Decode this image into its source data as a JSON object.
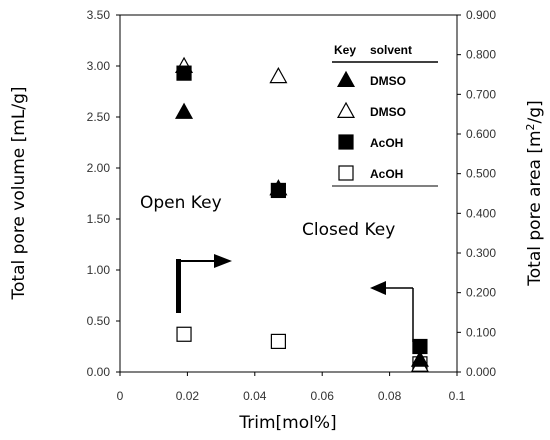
{
  "chart_data": {
    "type": "scatter",
    "xlabel": "Trim[mol%]",
    "ylabel_left": "Total pore volume [mL/g]",
    "ylabel_right_main": "Total pore area [m",
    "ylabel_right_sup": "2",
    "ylabel_right_end": "/g]",
    "xlim": [
      0,
      0.1
    ],
    "ylim_left": [
      0,
      3.5
    ],
    "ylim_right": [
      0,
      0.9
    ],
    "x_ticks": [
      "0",
      "0.02",
      "0.04",
      "0.06",
      "0.08",
      "0.1"
    ],
    "y_left_ticks": [
      "0.00",
      "0.50",
      "1.00",
      "1.50",
      "2.00",
      "2.50",
      "3.00",
      "3.50"
    ],
    "y_right_ticks": [
      "0.000",
      "0.100",
      "0.200",
      "0.300",
      "0.400",
      "0.500",
      "0.600",
      "0.700",
      "0.800",
      "0.900"
    ],
    "grid": false,
    "legend_position": "top-right",
    "legend": {
      "header_key": "Key",
      "header_solvent": "solvent",
      "entries": [
        {
          "marker": "triangle-filled",
          "label": "DMSO"
        },
        {
          "marker": "triangle-open",
          "label": "DMSO"
        },
        {
          "marker": "square-filled",
          "label": "AcOH"
        },
        {
          "marker": "square-open",
          "label": "AcOH"
        }
      ]
    },
    "series": [
      {
        "marker": "triangle-filled",
        "points": [
          [
            0.019,
            2.55
          ],
          [
            0.047,
            1.8
          ],
          [
            0.089,
            0.12
          ]
        ]
      },
      {
        "marker": "triangle-open",
        "points": [
          [
            0.019,
            3.0
          ],
          [
            0.047,
            2.9
          ],
          [
            0.089,
            0.07
          ]
        ]
      },
      {
        "marker": "square-filled",
        "points": [
          [
            0.019,
            2.93
          ],
          [
            0.047,
            1.78
          ],
          [
            0.089,
            0.25
          ]
        ]
      },
      {
        "marker": "square-open",
        "points": [
          [
            0.019,
            0.37
          ],
          [
            0.047,
            0.3
          ],
          [
            0.089,
            0.08
          ]
        ]
      }
    ],
    "annotations": [
      {
        "text": "Open Key"
      },
      {
        "text": "Closed Key"
      }
    ]
  }
}
